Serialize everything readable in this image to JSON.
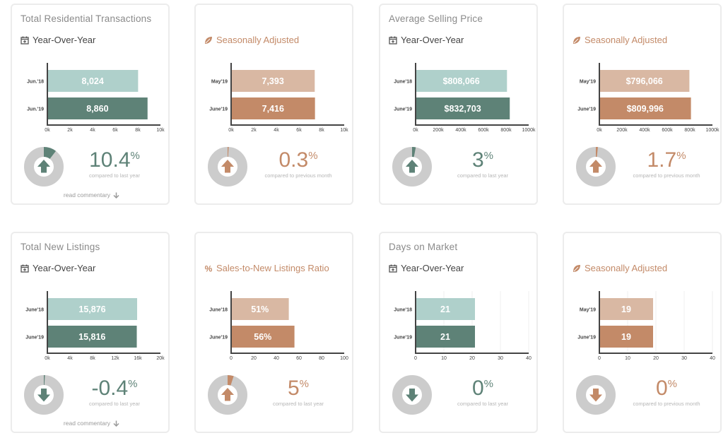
{
  "colors": {
    "green_dark": "#5e8277",
    "green_light": "#afd0cb",
    "copper_dark": "#c38a68",
    "copper_light": "#d9b8a3",
    "donut_gray": "#cccccc"
  },
  "cards": [
    {
      "title": "Total Residential Transactions",
      "subtitle": "Year-Over-Year",
      "subtitle_icon": "calendar-icon",
      "theme": "green",
      "percent_value": "10.4",
      "percent_symbol": "%",
      "compare_note": "compared to last year",
      "direction": "up",
      "commentary": "read commentary",
      "chart_data": {
        "type": "bar",
        "categories": [
          "Jun.'18",
          "Jun.'19"
        ],
        "values": [
          8024,
          8860
        ],
        "value_labels": [
          "8,024",
          "8,860"
        ],
        "xlim": [
          0,
          10000
        ],
        "xticks": [
          "0k",
          "2k",
          "4k",
          "6k",
          "8k",
          "10k"
        ],
        "orientation": "horizontal",
        "grid": false
      }
    },
    {
      "title": "",
      "subtitle": "Seasonally Adjusted",
      "subtitle_icon": "leaf-icon",
      "theme": "copper",
      "percent_value": "0.3",
      "percent_symbol": "%",
      "compare_note": "compared to previous month",
      "direction": "up",
      "commentary": "",
      "chart_data": {
        "type": "bar",
        "categories": [
          "May'19",
          "June'19"
        ],
        "values": [
          7393,
          7416
        ],
        "value_labels": [
          "7,393",
          "7,416"
        ],
        "xlim": [
          0,
          10000
        ],
        "xticks": [
          "0k",
          "2k",
          "4k",
          "6k",
          "8k",
          "10k"
        ],
        "orientation": "horizontal",
        "grid": false
      }
    },
    {
      "title": "Average Selling Price",
      "subtitle": "Year-Over-Year",
      "subtitle_icon": "calendar-icon",
      "theme": "green",
      "percent_value": "3",
      "percent_symbol": "%",
      "compare_note": "compared to last year",
      "direction": "up",
      "commentary": "",
      "chart_data": {
        "type": "bar",
        "categories": [
          "June'18",
          "June'19"
        ],
        "values": [
          808066,
          832703
        ],
        "value_labels": [
          "$808,066",
          "$832,703"
        ],
        "xlim": [
          0,
          1000000
        ],
        "xticks": [
          "0k",
          "200k",
          "400k",
          "600k",
          "800k",
          "1000k"
        ],
        "orientation": "horizontal",
        "grid": false
      }
    },
    {
      "title": "",
      "subtitle": "Seasonally Adjusted",
      "subtitle_icon": "leaf-icon",
      "theme": "copper",
      "percent_value": "1.7",
      "percent_symbol": "%",
      "compare_note": "compared to previous month",
      "direction": "up",
      "commentary": "",
      "chart_data": {
        "type": "bar",
        "categories": [
          "May'19",
          "June'19"
        ],
        "values": [
          796066,
          809996
        ],
        "value_labels": [
          "$796,066",
          "$809,996"
        ],
        "xlim": [
          0,
          1000000
        ],
        "xticks": [
          "0k",
          "200k",
          "400k",
          "600k",
          "800k",
          "1000k"
        ],
        "orientation": "horizontal",
        "grid": false
      }
    },
    {
      "title": "Total New Listings",
      "subtitle": "Year-Over-Year",
      "subtitle_icon": "calendar-icon",
      "theme": "green",
      "percent_value": "-0.4",
      "percent_symbol": "%",
      "compare_note": "compared to last year",
      "direction": "down",
      "commentary": "read commentary",
      "chart_data": {
        "type": "bar",
        "categories": [
          "June'18",
          "June'19"
        ],
        "values": [
          15876,
          15816
        ],
        "value_labels": [
          "15,876",
          "15,816"
        ],
        "xlim": [
          0,
          20000
        ],
        "xticks": [
          "0k",
          "4k",
          "8k",
          "12k",
          "16k",
          "20k"
        ],
        "orientation": "horizontal",
        "grid": false
      }
    },
    {
      "title": "",
      "subtitle": "Sales-to-New Listings Ratio",
      "subtitle_icon": "percent-icon",
      "theme": "copper",
      "percent_value": "5",
      "percent_symbol": "%",
      "compare_note": "compared to last year",
      "direction": "up",
      "commentary": "",
      "chart_data": {
        "type": "bar",
        "categories": [
          "June'18",
          "June'19"
        ],
        "values": [
          51,
          56
        ],
        "value_labels": [
          "51%",
          "56%"
        ],
        "xlim": [
          0,
          100
        ],
        "xticks": [
          "0",
          "20",
          "40",
          "60",
          "80",
          "100"
        ],
        "orientation": "horizontal",
        "grid": false
      }
    },
    {
      "title": "Days on Market",
      "subtitle": "Year-Over-Year",
      "subtitle_icon": "calendar-icon",
      "theme": "green",
      "percent_value": "0",
      "percent_symbol": "%",
      "compare_note": "compared to last year",
      "direction": "down",
      "commentary": "",
      "chart_data": {
        "type": "bar",
        "categories": [
          "June'18",
          "June'19"
        ],
        "values": [
          21,
          21
        ],
        "value_labels": [
          "21",
          "21"
        ],
        "xlim": [
          0,
          40
        ],
        "xticks": [
          "0",
          "10",
          "20",
          "30",
          "40"
        ],
        "orientation": "horizontal",
        "grid": true
      }
    },
    {
      "title": "",
      "subtitle": "Seasonally Adjusted",
      "subtitle_icon": "leaf-icon",
      "theme": "copper",
      "percent_value": "0",
      "percent_symbol": "%",
      "compare_note": "compared to previous month",
      "direction": "down",
      "commentary": "",
      "chart_data": {
        "type": "bar",
        "categories": [
          "May'19",
          "June'19"
        ],
        "values": [
          19,
          19
        ],
        "value_labels": [
          "19",
          "19"
        ],
        "xlim": [
          0,
          40
        ],
        "xticks": [
          "0",
          "10",
          "20",
          "30",
          "40"
        ],
        "orientation": "horizontal",
        "grid": true
      }
    }
  ]
}
